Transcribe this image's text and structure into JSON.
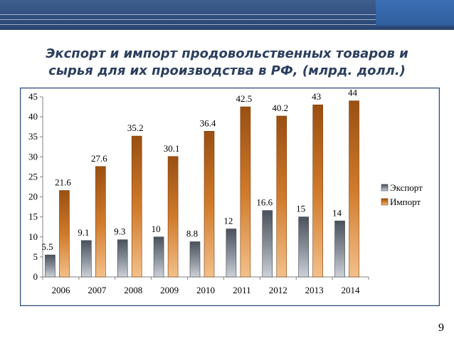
{
  "slide": {
    "title_line1": "Экспорт и импорт продовольственных товаров и",
    "title_line2": "сырья  для их производства в РФ, (млрд. долл.)",
    "page_number": "9"
  },
  "colors": {
    "export": "#5f6670",
    "import": "#b8651a",
    "header": "#2f4d7d"
  },
  "chart_data": {
    "type": "bar",
    "categories": [
      "2006",
      "2007",
      "2008",
      "2009",
      "2010",
      "2011",
      "2012",
      "2013",
      "2014"
    ],
    "series": [
      {
        "name": "Экспорт",
        "values": [
          5.5,
          9.1,
          9.3,
          10,
          8.8,
          12,
          16.6,
          15,
          14
        ],
        "labels": [
          "5.5",
          "9.1",
          "9.3",
          "10",
          "8.8",
          "12",
          "16.6",
          "15",
          "14"
        ]
      },
      {
        "name": "Импорт",
        "values": [
          21.6,
          27.6,
          35.2,
          30.1,
          36.4,
          42.5,
          40.2,
          43,
          44
        ],
        "labels": [
          "21.6",
          "27.6",
          "35.2",
          "30.1",
          "36.4",
          "42.5",
          "40.2",
          "43",
          "44"
        ]
      }
    ],
    "ylim": [
      0,
      45
    ],
    "yticks": [
      "0",
      "5",
      "10",
      "15",
      "20",
      "25",
      "30",
      "35",
      "40",
      "45"
    ],
    "legend_position": "right",
    "grid": false
  }
}
